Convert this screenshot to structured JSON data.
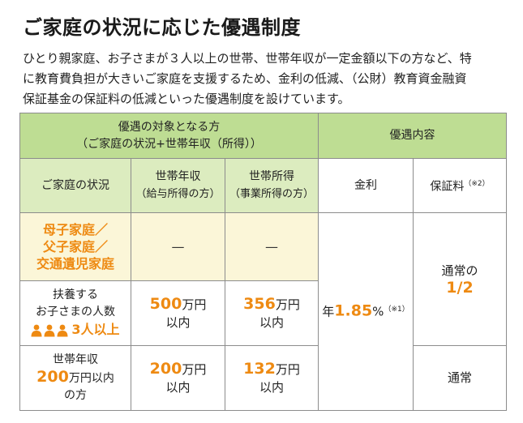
{
  "title": "ご家庭の状況に応じた優遇制度",
  "description": [
    "ひとり親家庭、お子さまが３人以上の世帯、世帯年収が一定金額以下の方など、特",
    "に教育費負担が大きいご家庭を支援するため、金利の低減、（公財）教育資金融資",
    "保証基金の保証料の低減といった優遇制度を設けています。"
  ],
  "table": {
    "header": {
      "target_line1": "優遇の対象となる方",
      "target_line2": "（ご家庭の状況+世帯年収（所得））",
      "benefit": "優遇内容"
    },
    "subheader": {
      "situation": "ご家庭の状況",
      "income_label": "世帯年収",
      "income_note": "（給与所得の方）",
      "earnings_label": "世帯所得",
      "earnings_note": "（事業所得の方）",
      "rate": "金利",
      "fee": "保証料",
      "fee_note": "（※2）"
    },
    "rows": {
      "single_parent": {
        "line1": "母子家庭／",
        "line2": "父子家庭／",
        "line3": "交通遺児家庭",
        "income": "—",
        "earnings": "—"
      },
      "three_children": {
        "line1": "扶養する",
        "line2": "お子さまの人数",
        "highlight": "3人以上",
        "income_num": "500",
        "income_unit": "万円",
        "income_suffix": "以内",
        "earnings_num": "356",
        "earnings_unit": "万円",
        "earnings_suffix": "以内"
      },
      "low_income": {
        "line1": "世帯年収",
        "line2_num": "200",
        "line2_unit": "万円以内",
        "line3": "の方",
        "income_num": "200",
        "income_unit": "万円",
        "income_suffix": "以内",
        "earnings_num": "132",
        "earnings_unit": "万円",
        "earnings_suffix": "以内"
      }
    },
    "rate": {
      "prefix": "年",
      "value": "1.85",
      "unit": "%",
      "note": "（※1）"
    },
    "fee_reduced": {
      "line1": "通常の",
      "value": "1/2"
    },
    "fee_normal": "通常"
  },
  "colors": {
    "header_green": "#bedd93",
    "subheader_green": "#dcecbf",
    "cream": "#fbf6d8",
    "accent_orange": "#ee8a12"
  }
}
